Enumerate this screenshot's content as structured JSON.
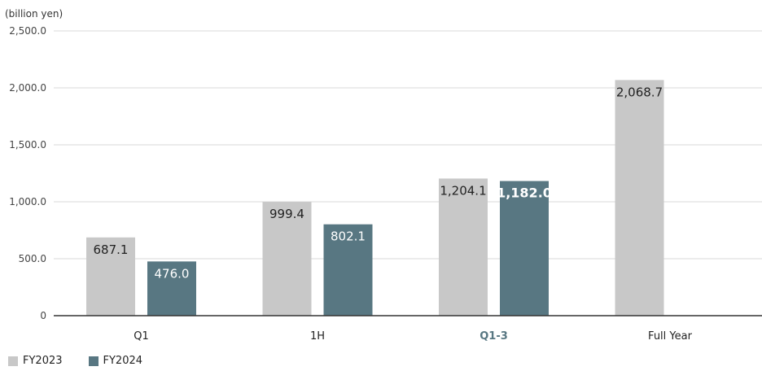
{
  "chart_data": {
    "type": "bar",
    "unit_label": "(billion yen)",
    "categories": [
      "Q1",
      "1H",
      "Q1-3",
      "Full Year"
    ],
    "highlight_category": "Q1-3",
    "ylim": [
      0,
      2500
    ],
    "yticks": [
      {
        "value": 0,
        "label": "0"
      },
      {
        "value": 500,
        "label": "500.0"
      },
      {
        "value": 1000,
        "label": "1,000.0"
      },
      {
        "value": 1500,
        "label": "1,500.0"
      },
      {
        "value": 2000,
        "label": "2,000.0"
      },
      {
        "value": 2500,
        "label": "2,500.0"
      }
    ],
    "grid": true,
    "legend_position": "bottom-left",
    "series": [
      {
        "name": "FY2023",
        "color": "#c8c8c8",
        "values": [
          687.1,
          999.4,
          1204.1,
          2068.7
        ],
        "labels": [
          "687.1",
          "999.4",
          "1,204.1",
          "2,068.7"
        ]
      },
      {
        "name": "FY2024",
        "color": "#587782",
        "values": [
          476.0,
          802.1,
          1182.0,
          null
        ],
        "labels": [
          "476.0",
          "802.1",
          "1,182.0",
          null
        ]
      }
    ]
  }
}
